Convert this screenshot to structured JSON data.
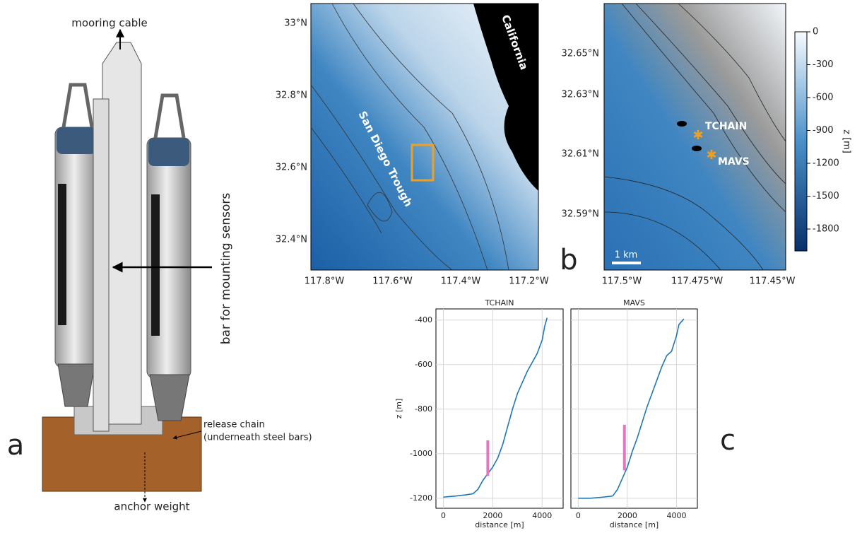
{
  "panel_a": {
    "label": "a",
    "mooring_cable": "mooring cable",
    "bar": "bar for mounting sensors",
    "release_chain": "release chain",
    "release_note": "(underneath steel bars)",
    "anchor": "anchor weight"
  },
  "panel_b": {
    "label": "b",
    "overview_map": {
      "xticks": [
        "117.8°W",
        "117.6°W",
        "117.4°W",
        "117.2°W"
      ],
      "yticks": [
        "33°N",
        "32.8°N",
        "32.6°N",
        "32.4°N"
      ],
      "land": "California",
      "trough": "San Diego Trough"
    },
    "detail_map": {
      "xticks": [
        "117.5°W",
        "117.475°W",
        "117.45°W"
      ],
      "yticks": [
        "32.65°N",
        "32.63°N",
        "32.61°N",
        "32.59°N"
      ],
      "sites": [
        "TCHAIN",
        "MAVS"
      ],
      "scale_bar": "1 km"
    },
    "colorbar": {
      "label": "z [m]",
      "lim": [
        -2000,
        0
      ],
      "ticks": [
        0,
        -300,
        -600,
        -900,
        -1200,
        -1500,
        -1800
      ]
    }
  },
  "panel_c": {
    "label": "c"
  },
  "chart_data": [
    {
      "type": "line",
      "title": "TCHAIN",
      "xlabel": "distance [m]",
      "ylabel": "z [m]",
      "xlim": [
        -300,
        4850
      ],
      "ylim": [
        -1245,
        -350
      ],
      "xticks": [
        0,
        2000,
        4000
      ],
      "yticks": [
        -400,
        -600,
        -800,
        -1000,
        -1200
      ],
      "grid": true,
      "x": [
        0,
        500,
        900,
        1200,
        1400,
        1600,
        1800,
        2000,
        2200,
        2400,
        2600,
        2800,
        3000,
        3200,
        3400,
        3600,
        3800,
        4000,
        4100,
        4200
      ],
      "series": [
        {
          "color": "#1f77b4",
          "values": [
            -1195,
            -1190,
            -1185,
            -1180,
            -1160,
            -1120,
            -1090,
            -1060,
            -1020,
            -960,
            -880,
            -800,
            -730,
            -680,
            -630,
            -590,
            -550,
            -490,
            -430,
            -390
          ]
        }
      ],
      "mooring": {
        "x": 1800,
        "bottom": -1100,
        "top": -940,
        "color": "#e377c2"
      }
    },
    {
      "type": "line",
      "title": "MAVS",
      "xlabel": "distance [m]",
      "xlim": [
        -300,
        4850
      ],
      "ylim": [
        -1245,
        -350
      ],
      "xticks": [
        0,
        2000,
        4000
      ],
      "yticks": [
        -400,
        -600,
        -800,
        -1000,
        -1200
      ],
      "grid": true,
      "x": [
        0,
        500,
        1000,
        1400,
        1600,
        1800,
        2000,
        2200,
        2400,
        2600,
        2800,
        3000,
        3200,
        3400,
        3600,
        3800,
        4000,
        4100,
        4300
      ],
      "series": [
        {
          "color": "#1f77b4",
          "values": [
            -1200,
            -1200,
            -1195,
            -1190,
            -1160,
            -1110,
            -1060,
            -990,
            -930,
            -860,
            -790,
            -730,
            -670,
            -610,
            -560,
            -540,
            -470,
            -420,
            -395
          ]
        }
      ],
      "mooring": {
        "x": 1880,
        "bottom": -1075,
        "top": -870,
        "color": "#e377c2"
      }
    }
  ]
}
